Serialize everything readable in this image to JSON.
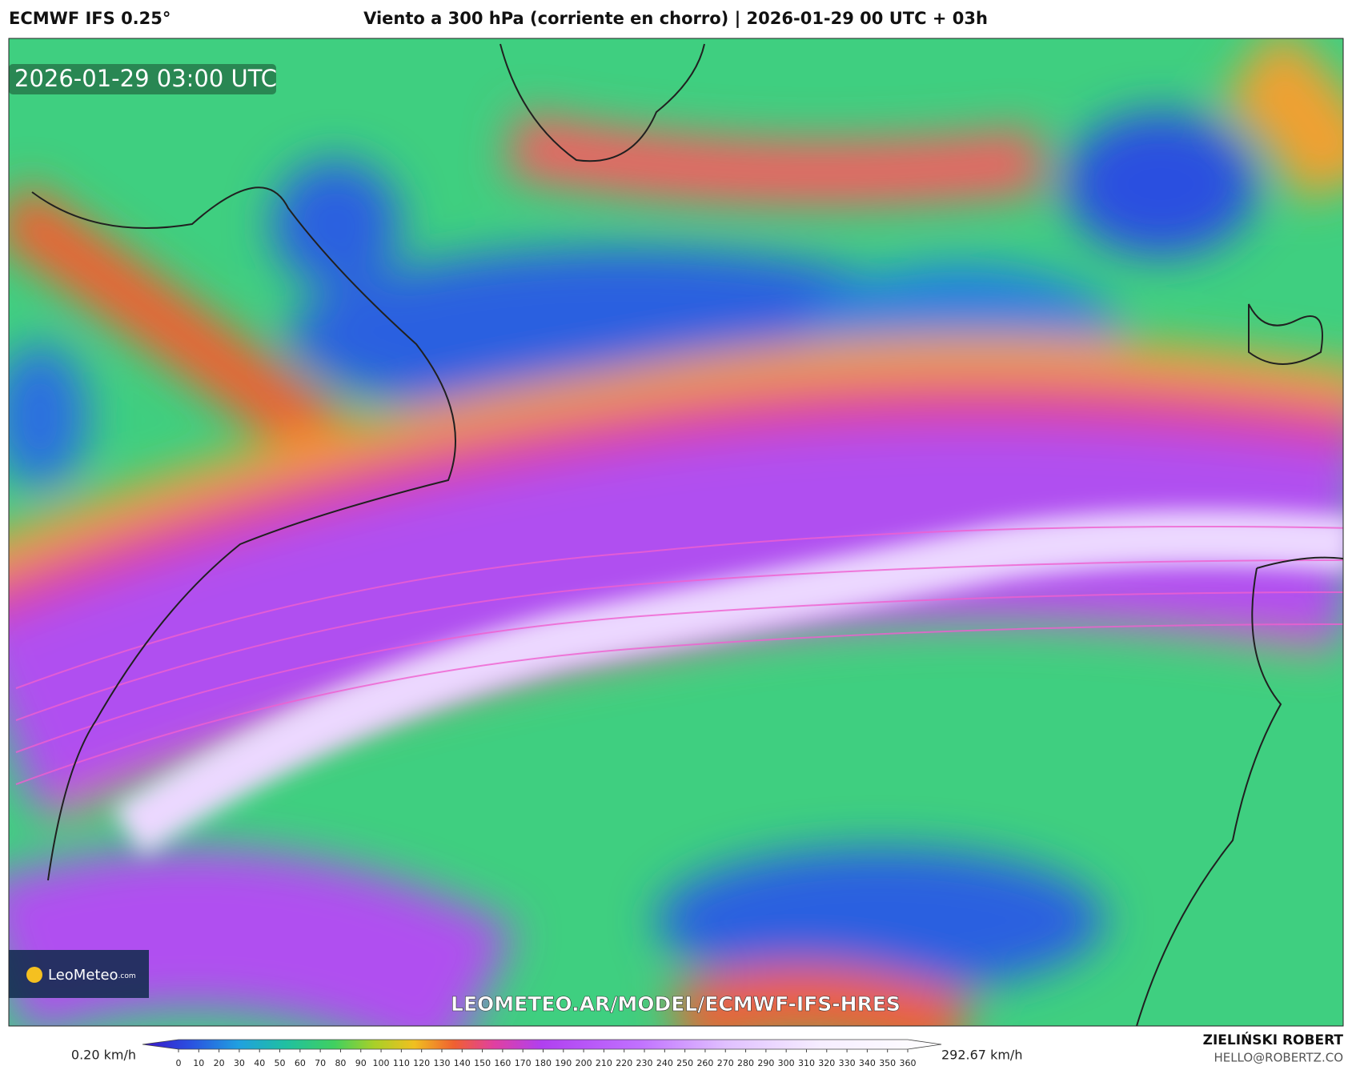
{
  "header": {
    "model": "ECMWF IFS 0.25°",
    "title": "Viento a 300 hPa (corriente en chorro) | 2026-01-29 00 UTC + 03h"
  },
  "map": {
    "timestamp": "2026-01-29 03:00 UTC",
    "watermark": "LEOMETEO.AR/MODEL/ECMWF-IFS-HRES",
    "logo": "LeoMeteo",
    "logo_suffix": ".com"
  },
  "colorbar": {
    "min_label": "0.20 km/h",
    "max_label": "292.67 km/h",
    "ticks": [
      0,
      10,
      20,
      30,
      40,
      50,
      60,
      70,
      80,
      90,
      100,
      110,
      120,
      130,
      140,
      150,
      160,
      170,
      180,
      190,
      200,
      210,
      220,
      230,
      240,
      250,
      260,
      270,
      280,
      290,
      300,
      310,
      320,
      330,
      340,
      350,
      360
    ]
  },
  "footer": {
    "author": "ZIELIŃSKI ROBERT",
    "email": "HELLO@ROBERTZ.CO"
  }
}
